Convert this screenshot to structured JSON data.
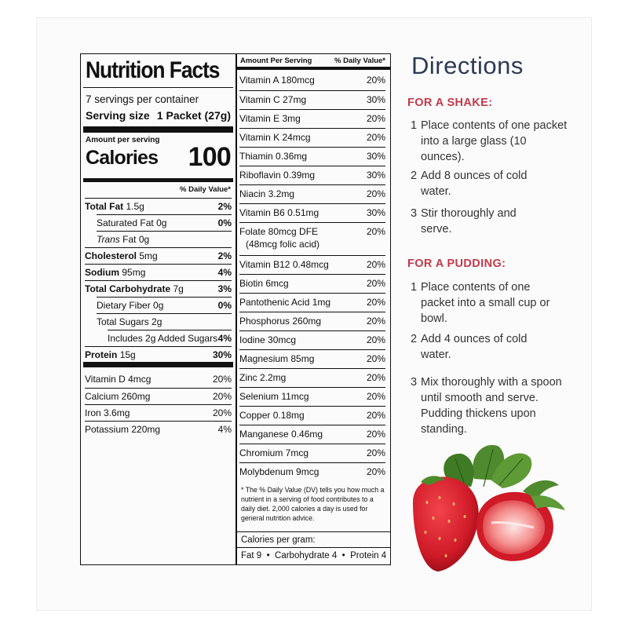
{
  "nutrition_facts": {
    "title": "Nutrition Facts",
    "servings_per_container": "7 servings per container",
    "serving_size_label": "Serving size",
    "serving_size_value": "1 Packet (27g)",
    "amount_per_serving": "Amount per serving",
    "calories_label": "Calories",
    "calories_value": "100",
    "daily_value_header": "% Daily Value*",
    "rows": [
      {
        "label": "Total Fat",
        "amount": "1.5g",
        "dv": "2%"
      },
      {
        "label": "Saturated Fat",
        "amount": "0g",
        "dv": "0%"
      },
      {
        "label": "Trans",
        "amount": "Fat 0g",
        "dv": ""
      },
      {
        "label": "Cholesterol",
        "amount": "5mg",
        "dv": "2%"
      },
      {
        "label": "Sodium",
        "amount": "95mg",
        "dv": "4%"
      },
      {
        "label": "Total Carbohydrate",
        "amount": "7g",
        "dv": "3%"
      },
      {
        "label": "Dietary Fiber",
        "amount": "0g",
        "dv": "0%"
      },
      {
        "label": "Total Sugars",
        "amount": "2g",
        "dv": ""
      },
      {
        "label": "Includes 2g Added Sugars",
        "amount": "",
        "dv": "4%"
      },
      {
        "label": "Protein",
        "amount": "15g",
        "dv": "30%"
      }
    ],
    "minerals": [
      {
        "label": "Vitamin D 4mcg",
        "dv": "20%"
      },
      {
        "label": "Calcium 260mg",
        "dv": "20%"
      },
      {
        "label": "Iron 3.6mg",
        "dv": "20%"
      },
      {
        "label": "Potassium 220mg",
        "dv": "4%"
      }
    ]
  },
  "vitamins_panel": {
    "header_left": "Amount Per Serving",
    "header_right": "% Daily Value*",
    "items": [
      {
        "label": "Vitamin A 180mcg",
        "dv": "20%"
      },
      {
        "label": "Vitamin C 27mg",
        "dv": "30%"
      },
      {
        "label": "Vitamin E 3mg",
        "dv": "20%"
      },
      {
        "label": "Vitamin K 24mcg",
        "dv": "20%"
      },
      {
        "label": "Thiamin 0.36mg",
        "dv": "30%"
      },
      {
        "label": "Riboflavin 0.39mg",
        "dv": "30%"
      },
      {
        "label": "Niacin 3.2mg",
        "dv": "20%"
      },
      {
        "label": "Vitamin B6 0.51mg",
        "dv": "30%"
      },
      {
        "label": "Folate 80mcg DFE",
        "label2": "(48mcg folic acid)",
        "dv": "20%"
      },
      {
        "label": "Vitamin B12 0.48mcg",
        "dv": "20%"
      },
      {
        "label": "Biotin 6mcg",
        "dv": "20%"
      },
      {
        "label": "Pantothenic Acid 1mg",
        "dv": "20%"
      },
      {
        "label": "Phosphorus 260mg",
        "dv": "20%"
      },
      {
        "label": "Iodine 30mcg",
        "dv": "20%"
      },
      {
        "label": "Magnesium 85mg",
        "dv": "20%"
      },
      {
        "label": "Zinc 2.2mg",
        "dv": "20%"
      },
      {
        "label": "Selenium 11mcg",
        "dv": "20%"
      },
      {
        "label": "Copper 0.18mg",
        "dv": "20%"
      },
      {
        "label": "Manganese 0.46mg",
        "dv": "20%"
      },
      {
        "label": "Chromium 7mcg",
        "dv": "20%"
      },
      {
        "label": "Molybdenum 9mcg",
        "dv": "20%"
      }
    ],
    "footnote": "* The % Daily Value (DV) tells you how much a nutrient in a serving of food contributes to a daily diet. 2,000 calories a day is used for general nutrition advice.",
    "calories_per_gram_label": "Calories per gram:",
    "calories_per_gram": "Fat 9  •  Carbohydrate 4  •  Protein 4"
  },
  "directions": {
    "title": "Directions",
    "shake_heading": "FOR A SHAKE:",
    "shake_steps": [
      {
        "num": "1",
        "text": "Place contents of one packet into a large glass (10 ounces)."
      },
      {
        "num": "2",
        "text": "Add 8 ounces of cold water."
      },
      {
        "num": "3",
        "text": "Stir thoroughly and serve."
      }
    ],
    "pudding_heading": "FOR A PUDDING:",
    "pudding_steps": [
      {
        "num": "1",
        "text": "Place contents of one packet into a small cup or bowl."
      },
      {
        "num": "2",
        "text": "Add 4 ounces of cold water."
      },
      {
        "num": "3",
        "text": "Mix thoroughly with a spoon until smooth and serve. Pudding thickens upon standing."
      }
    ]
  },
  "colors": {
    "heading_red": "#c23a4b",
    "title_navy": "#2c3b55",
    "strawberry_red": "#d8202e",
    "leaf_green": "#4f8a2e"
  }
}
